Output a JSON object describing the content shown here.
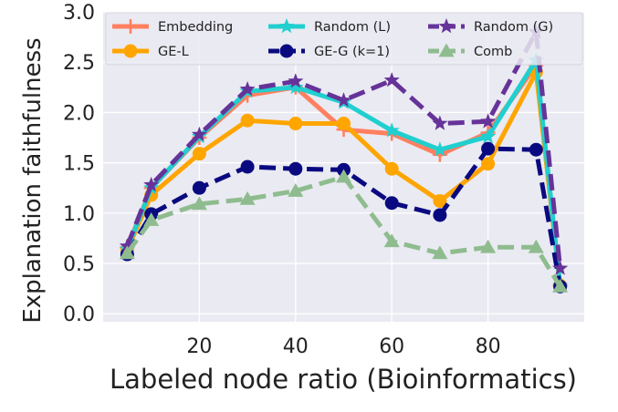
{
  "chart_data": {
    "type": "line",
    "xlabel": "Labeled node ratio (Bioinformatics)",
    "ylabel": "Explanation faithfulness",
    "xlim": [
      0,
      100
    ],
    "ylim": [
      -0.08,
      3.0
    ],
    "xticks": [
      20,
      40,
      60,
      80
    ],
    "yticks": [
      0.0,
      0.5,
      1.0,
      1.5,
      2.0,
      2.5,
      3.0
    ],
    "xtick_labels": [
      "20",
      "40",
      "60",
      "80"
    ],
    "ytick_labels": [
      "0.0",
      "0.5",
      "1.0",
      "1.5",
      "2.0",
      "2.5",
      "3.0"
    ],
    "grid": true,
    "background": "#EAEAF2",
    "legend_position": "top",
    "x": [
      5,
      10,
      20,
      30,
      40,
      50,
      60,
      70,
      80,
      90,
      95
    ],
    "series": [
      {
        "name": "Embedding",
        "color": "#FF8060",
        "marker": "plus",
        "dash": "solid",
        "values": [
          0.66,
          1.25,
          1.75,
          2.17,
          2.25,
          1.83,
          1.79,
          1.58,
          1.8,
          2.47,
          0.28
        ]
      },
      {
        "name": "GE-L",
        "color": "#FFA500",
        "marker": "circle",
        "dash": "solid",
        "values": [
          0.63,
          1.18,
          1.59,
          1.92,
          1.89,
          1.89,
          1.44,
          1.12,
          1.49,
          2.4,
          0.28
        ]
      },
      {
        "name": "Random (L)",
        "color": "#20CFCF",
        "marker": "star",
        "dash": "solid",
        "values": [
          0.64,
          1.25,
          1.76,
          2.21,
          2.25,
          2.1,
          1.82,
          1.63,
          1.76,
          2.52,
          0.28
        ]
      },
      {
        "name": "GE-G (k=1)",
        "color": "#0A0A80",
        "marker": "circle",
        "dash": "dashed",
        "values": [
          0.59,
          0.99,
          1.25,
          1.46,
          1.44,
          1.43,
          1.1,
          0.98,
          1.64,
          1.63,
          0.27
        ]
      },
      {
        "name": "Random (G)",
        "color": "#663399",
        "marker": "star",
        "dash": "dashed",
        "values": [
          0.67,
          1.28,
          1.78,
          2.23,
          2.31,
          2.12,
          2.32,
          1.89,
          1.91,
          2.8,
          0.45
        ]
      },
      {
        "name": "Comb",
        "color": "#8FBC8F",
        "marker": "triangle",
        "dash": "dashed",
        "values": [
          0.6,
          0.93,
          1.09,
          1.14,
          1.22,
          1.36,
          0.72,
          0.6,
          0.66,
          0.66,
          0.27
        ]
      }
    ]
  }
}
